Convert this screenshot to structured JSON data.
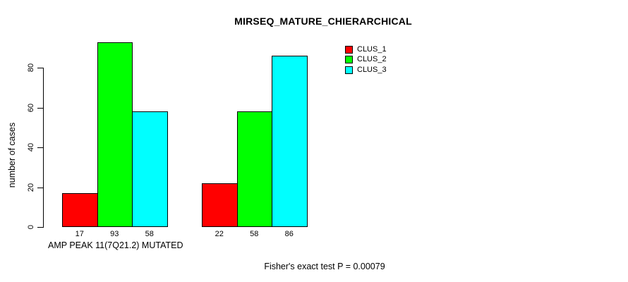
{
  "chart_data": {
    "type": "bar",
    "title": "MIRSEQ_MATURE_CHIERARCHICAL",
    "ylabel": "number of cases",
    "xlabel": "AMP PEAK 11(7Q21.2) MUTATED",
    "footnote": "Fisher's exact test P = 0.00079",
    "n_groups": 2,
    "series": [
      {
        "name": "CLUS_1",
        "color": "#ff0000",
        "values": [
          17,
          22
        ]
      },
      {
        "name": "CLUS_2",
        "color": "#00ff00",
        "values": [
          93,
          58
        ]
      },
      {
        "name": "CLUS_3",
        "color": "#00ffff",
        "values": [
          58,
          86
        ]
      }
    ],
    "bar_value_labels": [
      [
        17,
        93,
        58
      ],
      [
        22,
        58,
        86
      ]
    ],
    "yticks": [
      0,
      20,
      40,
      60,
      80
    ],
    "ylim": [
      0,
      93
    ],
    "grid": false,
    "legend_position": "top-right",
    "axis_color": "#000000",
    "background_color": "#ffffff"
  }
}
